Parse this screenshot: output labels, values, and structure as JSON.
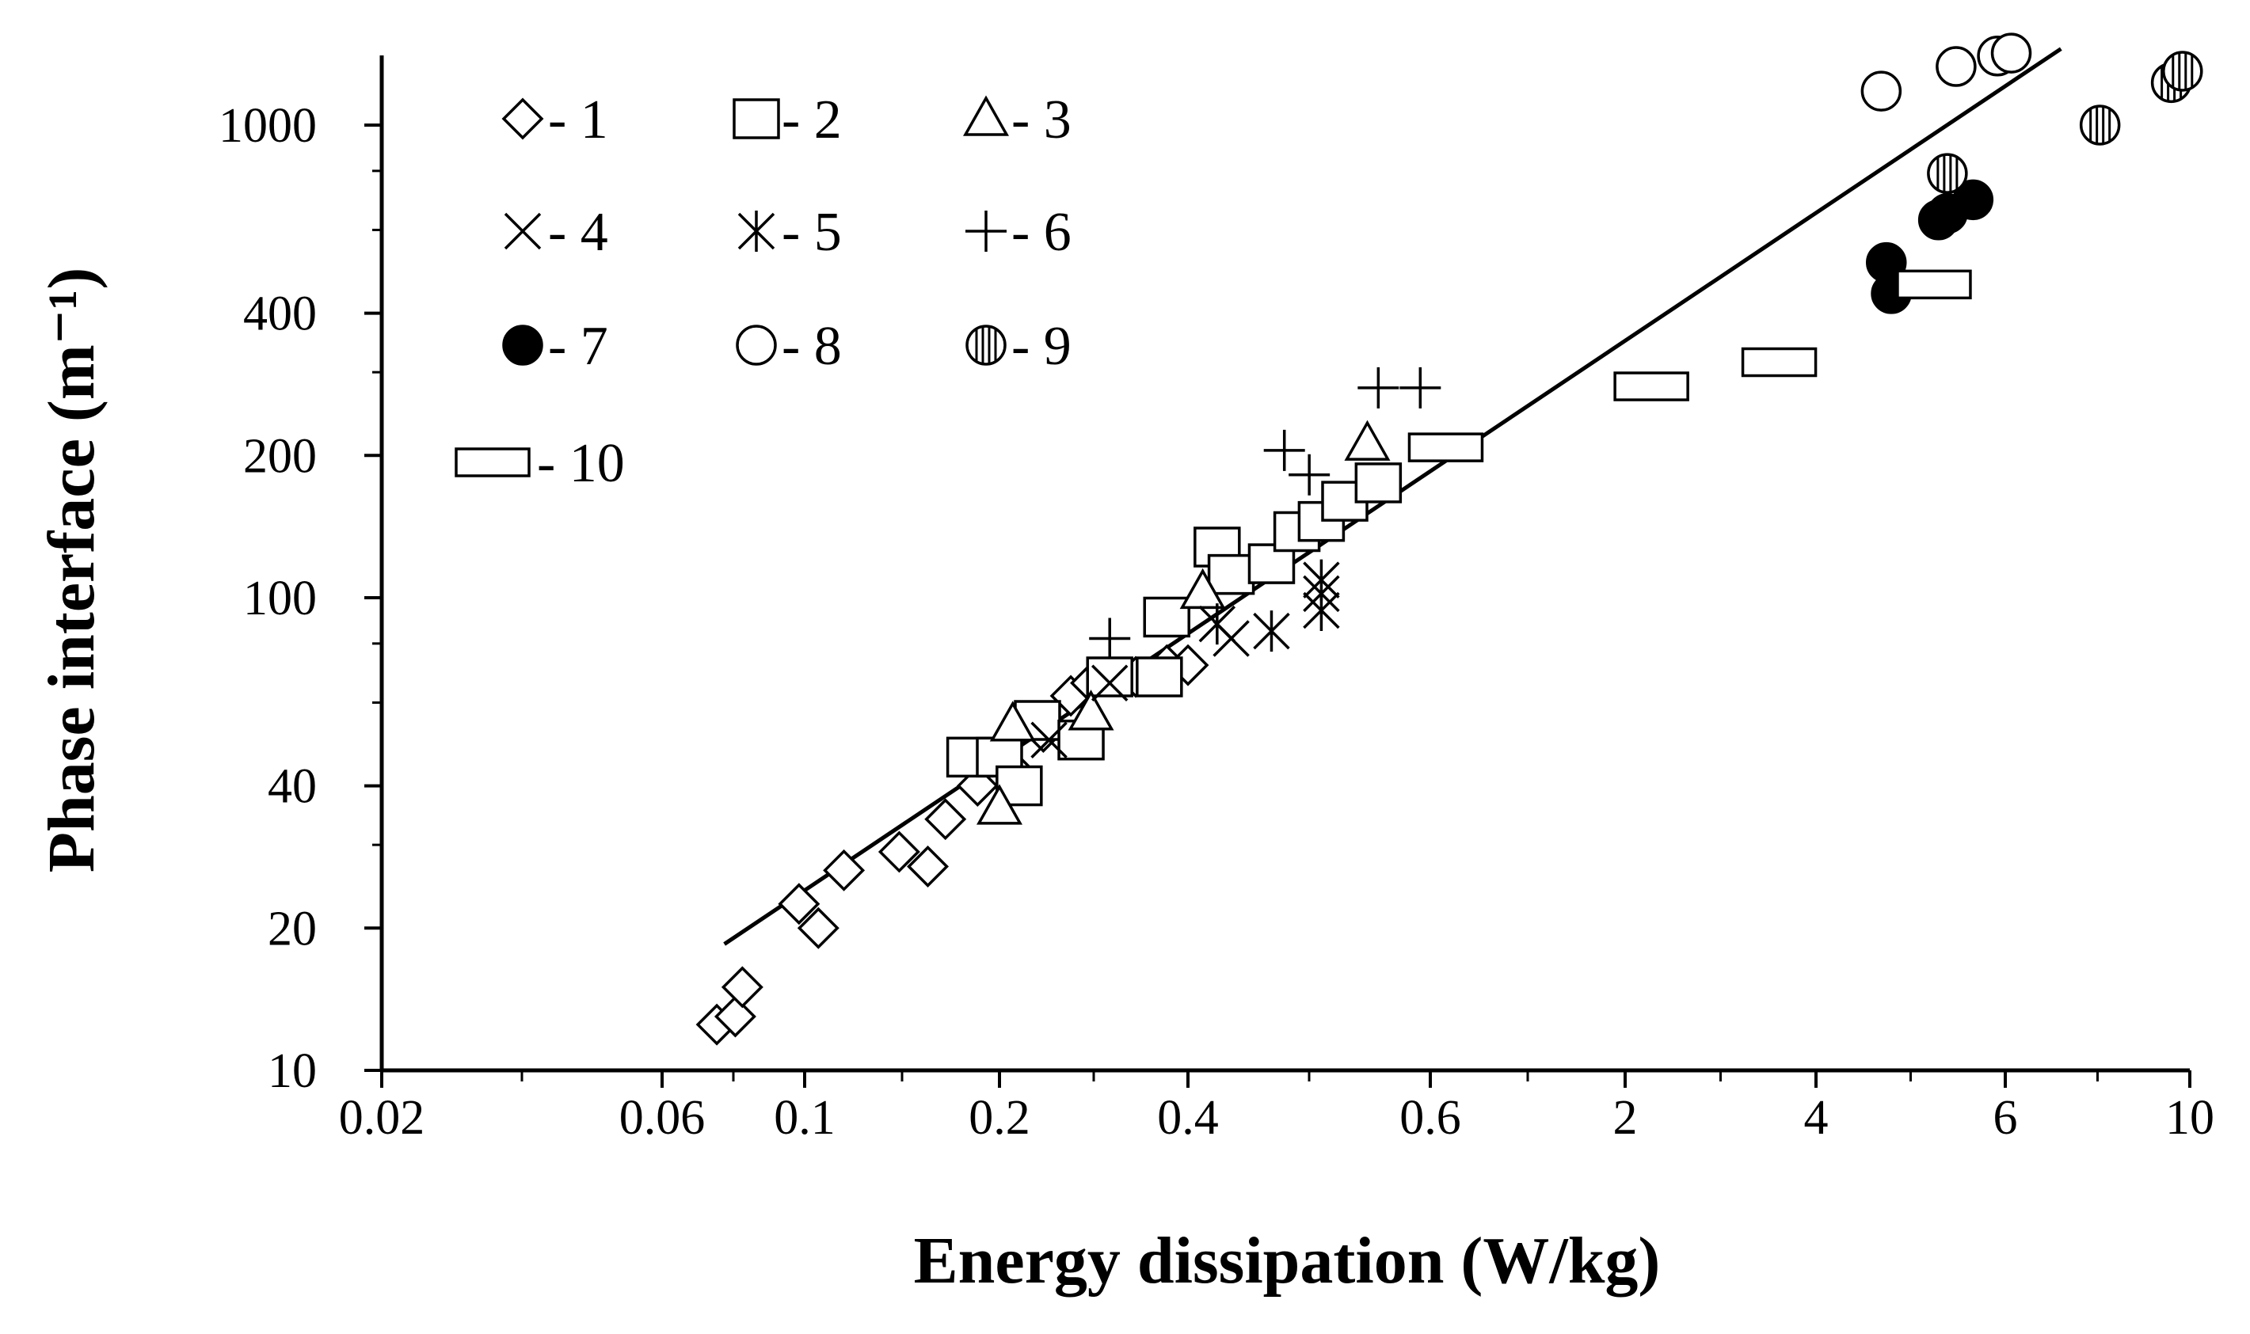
{
  "chart_data": {
    "type": "scatter",
    "xlabel": "Energy dissipation  (W/kg)",
    "ylabel": "Phase interface (m⁻¹)",
    "xscale": "log-like (piecewise, as printed)",
    "yscale": "log",
    "ylim": [
      10,
      1400
    ],
    "grid": false,
    "legend_position": "top-left",
    "x_ticks": [
      "0.02",
      "0.06",
      "0.1",
      "0.2",
      "0.4",
      "0.6",
      "2",
      "4",
      "6",
      "10"
    ],
    "y_ticks": [
      "10",
      "20",
      "40",
      "100",
      "200",
      "400",
      "1000"
    ],
    "fit_line": {
      "label": "fit",
      "start": {
        "x": 0.075,
        "y": 18.5
      },
      "end": {
        "x": 7.0,
        "y": 1450
      }
    },
    "series": [
      {
        "name": "1",
        "marker": "diamond",
        "points": [
          {
            "x": 0.073,
            "y": 12.5
          },
          {
            "x": 0.078,
            "y": 13
          },
          {
            "x": 0.08,
            "y": 15
          },
          {
            "x": 0.098,
            "y": 22.5
          },
          {
            "x": 0.105,
            "y": 20
          },
          {
            "x": 0.115,
            "y": 26.5
          },
          {
            "x": 0.14,
            "y": 29
          },
          {
            "x": 0.155,
            "y": 27
          },
          {
            "x": 0.165,
            "y": 34
          },
          {
            "x": 0.185,
            "y": 40
          },
          {
            "x": 0.215,
            "y": 42
          },
          {
            "x": 0.235,
            "y": 52
          },
          {
            "x": 0.26,
            "y": 62
          },
          {
            "x": 0.28,
            "y": 66
          },
          {
            "x": 0.33,
            "y": 68
          },
          {
            "x": 0.37,
            "y": 72
          },
          {
            "x": 0.4,
            "y": 72
          }
        ]
      },
      {
        "name": "2",
        "marker": "square",
        "points": [
          {
            "x": 0.18,
            "y": 46
          },
          {
            "x": 0.2,
            "y": 46
          },
          {
            "x": 0.215,
            "y": 40
          },
          {
            "x": 0.23,
            "y": 55
          },
          {
            "x": 0.27,
            "y": 50
          },
          {
            "x": 0.3,
            "y": 68
          },
          {
            "x": 0.36,
            "y": 68
          },
          {
            "x": 0.37,
            "y": 91
          },
          {
            "x": 0.42,
            "y": 128
          },
          {
            "x": 0.43,
            "y": 112
          },
          {
            "x": 0.46,
            "y": 118
          },
          {
            "x": 0.48,
            "y": 138
          },
          {
            "x": 0.5,
            "y": 145
          },
          {
            "x": 0.52,
            "y": 160
          },
          {
            "x": 0.55,
            "y": 175
          }
        ]
      },
      {
        "name": "3",
        "marker": "triangle",
        "points": [
          {
            "x": 0.2,
            "y": 36
          },
          {
            "x": 0.21,
            "y": 54
          },
          {
            "x": 0.28,
            "y": 57
          },
          {
            "x": 0.41,
            "y": 103
          },
          {
            "x": 0.54,
            "y": 212
          }
        ]
      },
      {
        "name": "4",
        "marker": "x",
        "points": [
          {
            "x": 0.24,
            "y": 50
          },
          {
            "x": 0.3,
            "y": 66
          },
          {
            "x": 0.43,
            "y": 82
          },
          {
            "x": 0.5,
            "y": 102
          }
        ]
      },
      {
        "name": "5",
        "marker": "asterisk",
        "points": [
          {
            "x": 0.42,
            "y": 88
          },
          {
            "x": 0.46,
            "y": 85
          },
          {
            "x": 0.5,
            "y": 94
          },
          {
            "x": 0.5,
            "y": 109
          }
        ]
      },
      {
        "name": "6",
        "marker": "plus",
        "points": [
          {
            "x": 0.3,
            "y": 82
          },
          {
            "x": 0.47,
            "y": 205
          },
          {
            "x": 0.49,
            "y": 182
          },
          {
            "x": 0.55,
            "y": 278
          },
          {
            "x": 0.59,
            "y": 278
          }
        ]
      },
      {
        "name": "7",
        "marker": "filled-circle",
        "points": [
          {
            "x": 4.65,
            "y": 512
          },
          {
            "x": 4.7,
            "y": 440
          },
          {
            "x": 5.2,
            "y": 630
          },
          {
            "x": 5.3,
            "y": 650
          },
          {
            "x": 5.6,
            "y": 695
          }
        ]
      },
      {
        "name": "8",
        "marker": "circle",
        "points": [
          {
            "x": 4.6,
            "y": 1180
          },
          {
            "x": 5.4,
            "y": 1330
          },
          {
            "x": 5.9,
            "y": 1400
          },
          {
            "x": 6.1,
            "y": 1420
          }
        ]
      },
      {
        "name": "9",
        "marker": "hatched-circle",
        "points": [
          {
            "x": 5.3,
            "y": 790
          },
          {
            "x": 7.8,
            "y": 1000
          },
          {
            "x": 9.5,
            "y": 1230
          },
          {
            "x": 9.8,
            "y": 1300
          }
        ]
      },
      {
        "name": "10",
        "marker": "rectangle",
        "points": [
          {
            "x": 0.66,
            "y": 208
          },
          {
            "x": 2.2,
            "y": 280
          },
          {
            "x": 3.5,
            "y": 315
          },
          {
            "x": 5.15,
            "y": 460
          }
        ]
      }
    ]
  }
}
